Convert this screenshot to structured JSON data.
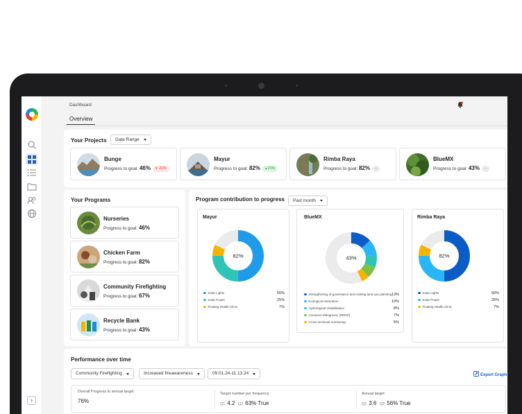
{
  "header": {
    "breadcrumb": "Dashboard",
    "tab": "Overview"
  },
  "projects": {
    "title": "Your Projects",
    "date_range": "Date Range",
    "items": [
      {
        "name": "Bunge",
        "label": "Progress to goal:",
        "value": "46%",
        "delta": "-21%"
      },
      {
        "name": "Mayur",
        "label": "Progress to goal:",
        "value": "82%",
        "delta": "21%"
      },
      {
        "name": "Rimba Raya",
        "label": "Progress to goal:",
        "value": "82%",
        "delta": "--"
      },
      {
        "name": "BlueMX",
        "label": "Progress to goal:",
        "value": "43%",
        "delta": "--"
      }
    ]
  },
  "programs": {
    "title": "Your Programs",
    "items": [
      {
        "name": "Nurseries",
        "label": "Progress to goal:",
        "value": "46%"
      },
      {
        "name": "Chicken Farm",
        "label": "Progress to goal:",
        "value": "82%"
      },
      {
        "name": "Community Firefighting",
        "label": "Progress to goal:",
        "value": "67%"
      },
      {
        "name": "Recycle Bank",
        "label": "Progress to goal:",
        "value": "43%"
      }
    ]
  },
  "contribution": {
    "title": "Program contribution to progress",
    "period": "Past month"
  },
  "chart_data": [
    {
      "type": "pie",
      "title": "Mayur",
      "center_label": "82%",
      "categories": [
        "Solar Lights",
        "Solar Power",
        "Floating Health Clinic"
      ],
      "values": [
        50,
        25,
        7
      ],
      "value_labels": [
        "50%",
        "25%",
        "7%"
      ],
      "colors": [
        "#1e9be9",
        "#2ec4b6",
        "#f4b400"
      ]
    },
    {
      "type": "pie",
      "title": "BlueMX",
      "center_label": "43%",
      "categories": [
        "Strengthening of governance and existing land use planning",
        "Ecological restoration",
        "Hydrological rehabilitation",
        "Conserve Mangroves (REDD)",
        "Cross-sectional monitoring"
      ],
      "values": [
        13,
        10,
        8,
        7,
        5
      ],
      "value_labels": [
        "13%",
        "10%",
        "8%",
        "7%",
        "5%"
      ],
      "colors": [
        "#0b5cc7",
        "#29b6f6",
        "#2ec4b6",
        "#7cc243",
        "#f4b400"
      ]
    },
    {
      "type": "pie",
      "title": "Rimba Raya",
      "center_label": "82%",
      "categories": [
        "Solar Lights",
        "Solar Power",
        "Floating Health Clinic"
      ],
      "values": [
        50,
        25,
        7
      ],
      "value_labels": [
        "50%",
        "25%",
        "7%"
      ],
      "colors": [
        "#0b5cc7",
        "#29b6f6",
        "#f4b400"
      ]
    }
  ],
  "performance": {
    "title": "Performance over time",
    "filters": [
      "Community Firefighting",
      "Increased fireawareness",
      "09.01.24-11.13.24"
    ],
    "export_label": "Export Graph",
    "overall_label": "Overall Progress to annual target",
    "overall_value": "76%",
    "target_label": "Target number per frequency",
    "target_q1": "Q1",
    "target_q1_val": "4.2",
    "target_q2": "Q2",
    "target_q2_val": "63% True",
    "annual_label": "Annual target",
    "annual_q1": "Q1",
    "annual_q1_val": "3.6",
    "annual_q2": "Q2",
    "annual_q2_val": "56% True"
  }
}
